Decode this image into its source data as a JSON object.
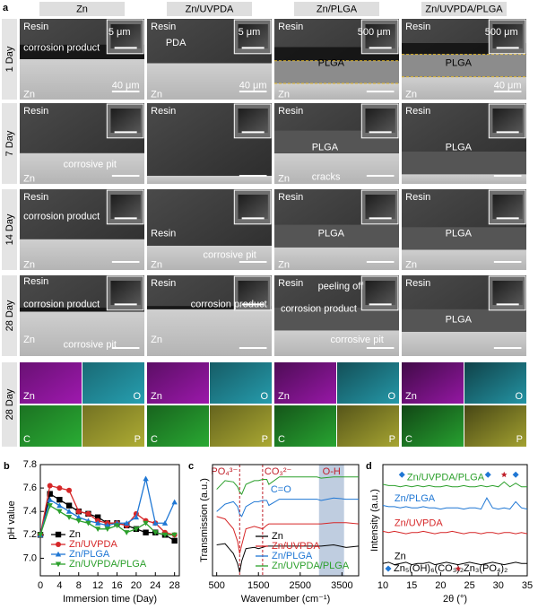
{
  "panel_labels": [
    "a",
    "b",
    "c",
    "d"
  ],
  "panel_a": {
    "columns": [
      "Zn",
      "Zn/UVPDA",
      "Zn/PLGA",
      "Zn/UVPDA/PLGA"
    ],
    "rows": [
      "1 Day",
      "7 Day",
      "14 Day",
      "28 Day"
    ],
    "cells": [
      [
        [
          "Resin",
          "corrosion product",
          "5 μm",
          "40 μm",
          "Zn"
        ],
        [
          "Resin",
          "PDA",
          "5 μm",
          "40 μm",
          "Zn"
        ],
        [
          "Resin",
          "500 μm",
          "PLGA",
          "Zn"
        ],
        [
          "Resin",
          "500 μm",
          "PLGA",
          "40 μm",
          "Zn"
        ]
      ],
      [
        [
          "Resin",
          "Zn",
          "corrosive pit"
        ],
        [
          "Resin"
        ],
        [
          "Resin",
          "PLGA",
          "Zn",
          "cracks"
        ],
        [
          "Resin",
          "PLGA"
        ]
      ],
      [
        [
          "Resin",
          "corrosion product",
          "Zn"
        ],
        [
          "Resin",
          "corrosive pit",
          "Zn"
        ],
        [
          "Resin",
          "PLGA",
          "Zn"
        ],
        [
          "Resin",
          "PLGA",
          "Zn"
        ]
      ],
      [
        [
          "Resin",
          "corrosion product",
          "Zn",
          "corrosive pit"
        ],
        [
          "Resin",
          "corrosion product",
          "Zn"
        ],
        [
          "Resin",
          "peeling off",
          "corrosion product",
          "corrosive pit"
        ],
        [
          "Resin",
          "PLGA"
        ]
      ]
    ],
    "eds": {
      "row": "28 Day",
      "elements": [
        "Zn",
        "O",
        "C",
        "P"
      ],
      "colors": [
        "#b21cc4",
        "#2bb3c6",
        "#2fc23a",
        "#c4c23a"
      ]
    }
  },
  "chart_data": [
    {
      "type": "line",
      "panel_label": "b",
      "xlabel": "Immersion time (Day)",
      "ylabel": "pH value",
      "x": [
        0,
        2,
        4,
        6,
        8,
        10,
        12,
        14,
        16,
        18,
        20,
        22,
        24,
        26,
        28
      ],
      "xlim": [
        0,
        29
      ],
      "xticks": [
        0,
        4,
        8,
        12,
        16,
        20,
        24,
        28
      ],
      "ylim": [
        6.85,
        7.8
      ],
      "yticks": [
        {
          "value": 7,
          "label": "7.0"
        },
        {
          "value": 7.2,
          "label": "7.2"
        },
        {
          "value": 7.4,
          "label": "7.4"
        },
        {
          "value": 7.6,
          "label": "7.6"
        },
        {
          "value": 7.8,
          "label": "7.8"
        }
      ],
      "series": [
        {
          "name": "Zn",
          "color": "#000000",
          "marker": "square",
          "values": [
            7.2,
            7.55,
            7.5,
            7.45,
            7.4,
            7.38,
            7.35,
            7.3,
            7.3,
            7.28,
            7.25,
            7.22,
            7.22,
            7.2,
            7.15
          ]
        },
        {
          "name": "Zn/UVPDA",
          "color": "#d62728",
          "marker": "circle",
          "values": [
            7.2,
            7.62,
            7.6,
            7.58,
            7.4,
            7.38,
            7.32,
            7.3,
            7.3,
            7.28,
            7.38,
            7.32,
            7.3,
            7.22,
            7.2
          ]
        },
        {
          "name": "Zn/PLGA",
          "color": "#1f77d4",
          "marker": "triangle",
          "values": [
            7.2,
            7.5,
            7.45,
            7.4,
            7.35,
            7.32,
            7.3,
            7.28,
            7.3,
            7.3,
            7.35,
            7.68,
            7.3,
            7.3,
            7.48
          ]
        },
        {
          "name": "Zn/UVPDA/PLGA",
          "color": "#2ca02c",
          "marker": "down-triangle",
          "values": [
            7.2,
            7.45,
            7.4,
            7.35,
            7.32,
            7.3,
            7.25,
            7.25,
            7.28,
            7.22,
            7.25,
            7.3,
            7.22,
            7.2,
            7.2
          ]
        }
      ]
    },
    {
      "type": "line",
      "panel_label": "c",
      "xlabel": "Wavenumber (cm⁻¹)",
      "ylabel": "Transmission (a.u.)",
      "x": [
        500,
        700,
        900,
        1000,
        1050,
        1100,
        1200,
        1400,
        1500,
        1600,
        1700,
        1750,
        2000,
        2500,
        2900,
        3000,
        3300,
        3600,
        3900
      ],
      "xlim": [
        400,
        3900
      ],
      "xticks": [
        500,
        1500,
        2500,
        3500
      ],
      "ylim": [
        0,
        9
      ],
      "reference_lines": [
        {
          "label": "PO₄³⁻",
          "value": 1050
        },
        {
          "label": "CO₃²⁻",
          "value": 1600
        }
      ],
      "annotations": [
        {
          "text": "C=O",
          "x": 1750
        }
      ],
      "band": {
        "text": "O-H",
        "range": [
          2950,
          3550
        ]
      },
      "series": [
        {
          "name": "Zn",
          "color": "#000000",
          "values": [
            2.5,
            2.6,
            1.8,
            1.0,
            0.3,
            1.2,
            2.2,
            2.3,
            2.2,
            2.3,
            2.4,
            2.4,
            2.4,
            2.4,
            2.4,
            2.4,
            2.5,
            2.3,
            2.4
          ]
        },
        {
          "name": "Zn/UVPDA",
          "color": "#d62728",
          "values": [
            4.8,
            4.6,
            3.8,
            2.8,
            1.8,
            2.5,
            3.8,
            4.0,
            3.9,
            3.8,
            4.1,
            4.2,
            4.2,
            4.2,
            4.2,
            4.2,
            4.3,
            4.3,
            4.2
          ]
        },
        {
          "name": "Zn/PLGA",
          "color": "#1f77d4",
          "values": [
            5.2,
            5.8,
            6.0,
            5.6,
            5.0,
            4.8,
            5.6,
            6.0,
            6.0,
            6.1,
            6.1,
            5.7,
            6.2,
            6.2,
            6.2,
            6.1,
            6.3,
            6.2,
            6.2
          ]
        },
        {
          "name": "Zn/UVPDA/PLGA",
          "color": "#2ca02c",
          "values": [
            7.0,
            7.7,
            7.6,
            7.2,
            6.8,
            6.6,
            7.4,
            7.7,
            7.7,
            7.8,
            7.8,
            7.4,
            8.0,
            8.0,
            8.0,
            7.9,
            8.0,
            8.0,
            8.0
          ]
        }
      ]
    },
    {
      "type": "line",
      "panel_label": "d",
      "xlabel": "2θ (°)",
      "ylabel": "Intensity (a.u.)",
      "x": [
        10,
        11,
        12,
        13,
        14,
        15,
        16,
        17,
        18,
        19,
        20,
        21,
        22,
        23,
        24,
        25,
        26,
        27,
        28,
        29,
        30,
        31,
        32,
        33,
        34,
        35
      ],
      "xlim": [
        10,
        35
      ],
      "xticks": [
        10,
        15,
        20,
        25,
        30,
        35
      ],
      "ylim": [
        0,
        9
      ],
      "series": [
        {
          "name": "Zn",
          "color": "#000000",
          "values": [
            1.0,
            1.1,
            0.9,
            1.0,
            1.1,
            0.9,
            1.0,
            1.0,
            1.1,
            0.9,
            1.0,
            1.1,
            1.0,
            0.9,
            1.0,
            1.1,
            1.0,
            0.9,
            1.0,
            1.1,
            1.0,
            0.9,
            1.0,
            1.1,
            1.0,
            1.0
          ]
        },
        {
          "name": "Zn/UVPDA",
          "color": "#d62728",
          "values": [
            3.6,
            3.5,
            3.6,
            3.5,
            3.4,
            3.5,
            3.5,
            3.6,
            3.5,
            3.4,
            3.5,
            3.5,
            3.6,
            3.5,
            3.4,
            3.5,
            3.5,
            3.4,
            3.5,
            3.5,
            3.4,
            3.5,
            3.5,
            3.4,
            3.5,
            3.4
          ]
        },
        {
          "name": "Zn/PLGA",
          "color": "#1f77d4",
          "values": [
            5.7,
            5.6,
            5.6,
            5.5,
            5.6,
            5.5,
            5.5,
            5.6,
            5.5,
            5.5,
            5.4,
            5.5,
            5.5,
            5.5,
            5.4,
            5.5,
            5.5,
            5.4,
            6.3,
            5.5,
            5.4,
            5.5,
            5.4,
            6.0,
            5.5,
            5.4
          ]
        },
        {
          "name": "Zn/UVPDA/PLGA",
          "color": "#2ca02c",
          "values": [
            7.4,
            7.3,
            7.3,
            7.2,
            7.3,
            7.2,
            7.3,
            7.2,
            7.3,
            7.2,
            7.2,
            7.3,
            7.2,
            7.2,
            7.3,
            7.2,
            7.2,
            7.3,
            7.2,
            7.3,
            7.2,
            7.6,
            7.2,
            7.5,
            7.2,
            7.2
          ]
        }
      ],
      "phases": [
        {
          "name": "Zn₅(OH)₆(CO₃)₂",
          "color": "#1f77d4",
          "symbol": "diamond",
          "positions": [
            13.3,
            28.2,
            33
          ]
        },
        {
          "name": "Zn₃(PO₄)₂",
          "color": "#c0202a",
          "symbol": "star",
          "positions": [
            31
          ]
        }
      ]
    }
  ]
}
